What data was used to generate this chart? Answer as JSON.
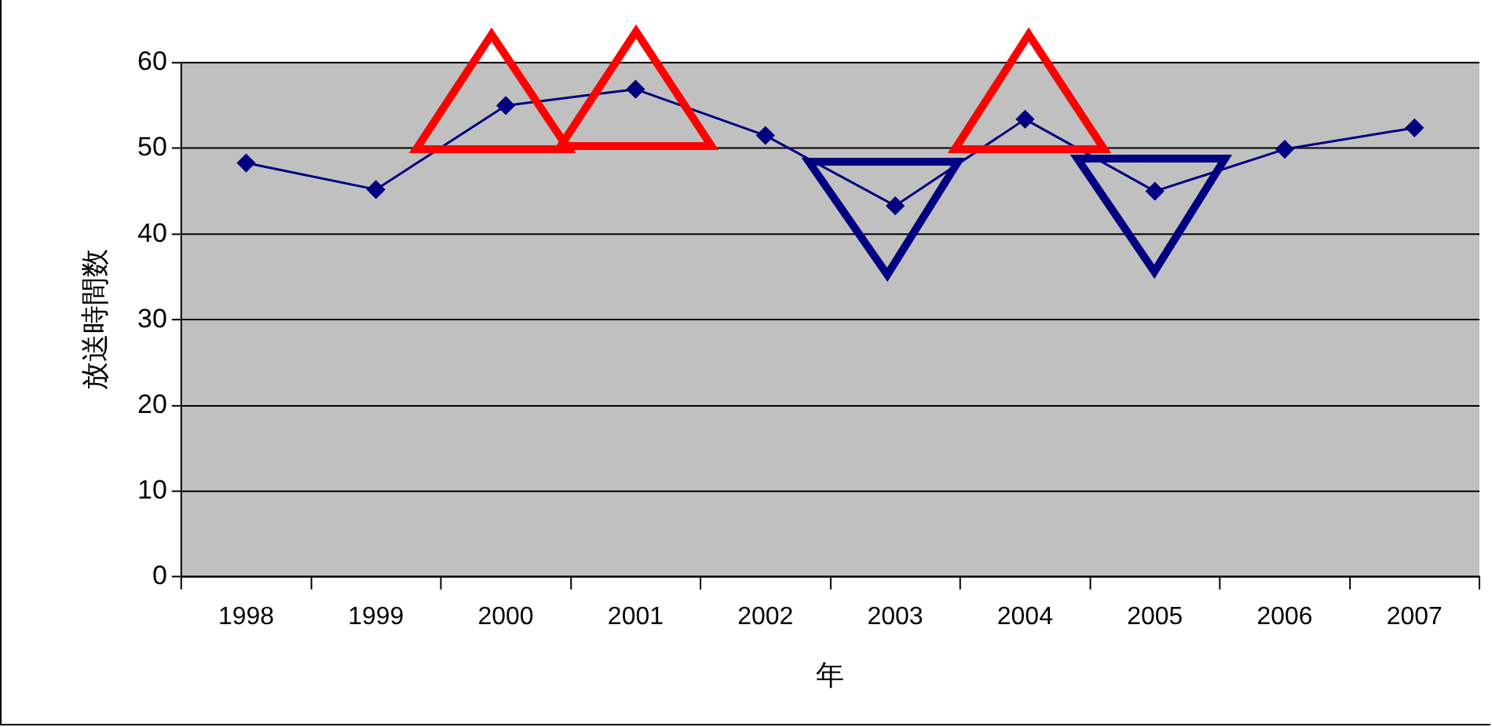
{
  "chart_data": {
    "type": "line",
    "xlabel": "年",
    "ylabel": "放送時間数",
    "categories": [
      "1998",
      "1999",
      "2000",
      "2001",
      "2002",
      "2003",
      "2004",
      "2005",
      "2006",
      "2007"
    ],
    "series": [
      {
        "color": "#000080",
        "values": [
          48.3,
          45.2,
          55.0,
          56.9,
          51.5,
          43.3,
          53.4,
          45.0,
          49.9,
          52.4
        ]
      }
    ],
    "ylim": [
      0,
      60
    ],
    "yticks": [
      0,
      10,
      20,
      30,
      40,
      50,
      60
    ],
    "grid": "y",
    "legend": false,
    "marker": "diamond",
    "line_style": "solid"
  }
}
